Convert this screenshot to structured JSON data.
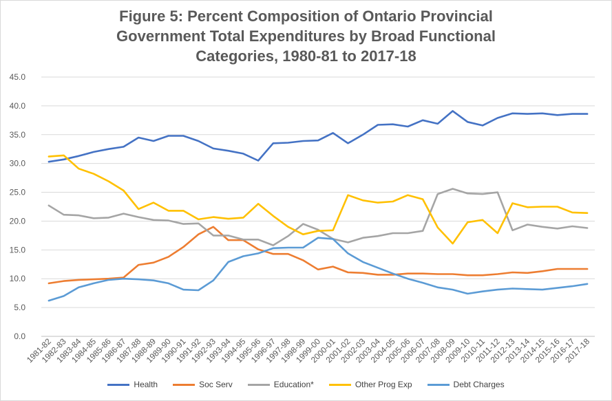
{
  "chart_data": {
    "type": "line",
    "title_lines": [
      "Figure 5: Percent Composition of Ontario Provincial",
      "Government Total Expenditures by Broad Functional",
      "Categories, 1980-81 to 2017-18"
    ],
    "xlabel": "",
    "ylabel": "",
    "ylim": [
      0,
      45
    ],
    "yticks": [
      0,
      5,
      10,
      15,
      20,
      25,
      30,
      35,
      40,
      45
    ],
    "ytick_labels": [
      "0.0",
      "5.0",
      "10.0",
      "15.0",
      "20.0",
      "25.0",
      "30.0",
      "35.0",
      "40.0",
      "45.0"
    ],
    "grid": true,
    "legend_position": "bottom",
    "categories": [
      "1981-82",
      "1982-83",
      "1983-84",
      "1984-85",
      "1985-86",
      "1986-87",
      "1987-88",
      "1988-89",
      "1989-90",
      "1990-91",
      "1991-92",
      "1992-93",
      "1993-94",
      "1994-95",
      "1995-96",
      "1996-97",
      "1997-98",
      "1998-99",
      "1999-00",
      "2000-01",
      "2001-02",
      "2002-03",
      "2003-04",
      "2004-05",
      "2005-06",
      "2006-07",
      "2007-08",
      "2008-09",
      "2009-10",
      "2010-11",
      "2011-12",
      "2012-13",
      "2013-14",
      "2014-15",
      "2015-16",
      "2016-17",
      "2017-18"
    ],
    "series": [
      {
        "name": "Health",
        "color": "#4472c4",
        "values": [
          30.3,
          30.7,
          31.3,
          32.0,
          32.5,
          32.9,
          34.5,
          33.9,
          34.8,
          34.8,
          33.9,
          32.6,
          32.2,
          31.7,
          30.5,
          33.5,
          33.6,
          33.9,
          34.0,
          35.3,
          33.5,
          35.0,
          36.7,
          36.8,
          36.4,
          37.5,
          36.9,
          39.1,
          37.2,
          36.6,
          37.9,
          38.7,
          38.6,
          38.7,
          38.4,
          38.6,
          38.6
        ]
      },
      {
        "name": "Soc Serv",
        "color": "#ed7d31",
        "values": [
          9.2,
          9.6,
          9.8,
          9.9,
          10.0,
          10.2,
          12.4,
          12.8,
          13.8,
          15.5,
          17.7,
          19.0,
          16.7,
          16.7,
          15.1,
          14.3,
          14.3,
          13.2,
          11.6,
          12.1,
          11.1,
          11.0,
          10.7,
          10.7,
          10.9,
          10.9,
          10.8,
          10.8,
          10.6,
          10.6,
          10.8,
          11.1,
          11.0,
          11.3,
          11.7,
          11.7,
          11.7
        ]
      },
      {
        "name": "Education*",
        "color": "#a5a5a5",
        "values": [
          22.7,
          21.1,
          21.0,
          20.5,
          20.6,
          21.3,
          20.7,
          20.2,
          20.1,
          19.5,
          19.6,
          17.5,
          17.5,
          16.8,
          16.8,
          15.8,
          17.4,
          19.5,
          18.5,
          16.9,
          16.3,
          17.1,
          17.4,
          17.9,
          17.9,
          18.3,
          24.7,
          25.6,
          24.8,
          24.7,
          25.0,
          18.4,
          19.4,
          19.0,
          18.7,
          19.1,
          18.8
        ]
      },
      {
        "name": "Other Prog Exp",
        "color": "#ffc000",
        "values": [
          31.2,
          31.4,
          29.1,
          28.2,
          26.9,
          25.3,
          22.1,
          23.2,
          21.8,
          21.8,
          20.3,
          20.7,
          20.4,
          20.6,
          23.0,
          20.9,
          19.0,
          17.7,
          18.3,
          18.4,
          24.5,
          23.6,
          23.2,
          23.4,
          24.5,
          23.8,
          18.9,
          16.1,
          19.8,
          20.2,
          17.9,
          23.1,
          22.4,
          22.5,
          22.5,
          21.5,
          21.4
        ]
      },
      {
        "name": "Debt Charges",
        "color": "#5b9bd5",
        "values": [
          6.2,
          7.0,
          8.5,
          9.2,
          9.8,
          10.0,
          9.9,
          9.7,
          9.2,
          8.1,
          8.0,
          9.7,
          12.9,
          13.9,
          14.4,
          15.3,
          15.4,
          15.4,
          17.1,
          16.9,
          14.4,
          12.9,
          11.9,
          10.9,
          10.0,
          9.3,
          8.5,
          8.1,
          7.4,
          7.8,
          8.1,
          8.3,
          8.2,
          8.1,
          8.4,
          8.7,
          9.1
        ]
      }
    ]
  }
}
